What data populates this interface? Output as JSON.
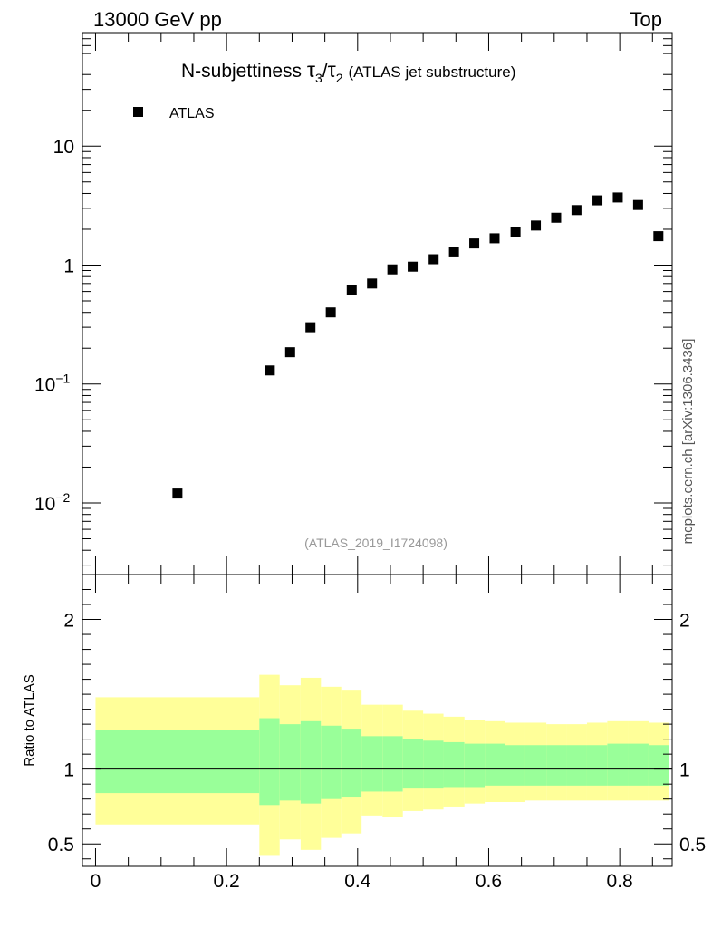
{
  "header": {
    "left": "13000 GeV pp",
    "right": "Top"
  },
  "side_label": "mcplots.cern.ch [arXiv:1306.3436]",
  "chart_data": {
    "type": "scatter",
    "title_main": "N-subjettiness ",
    "title_tau": "τ",
    "title_sub3": "3",
    "title_slash": "/",
    "title_sub2": "2",
    "title_paren": "(ATLAS jet substructure)",
    "legend": "ATLAS",
    "watermark": "(ATLAS_2019_I1724098)",
    "xlim": [
      -0.02,
      0.88
    ],
    "ylim_log": [
      0.0025,
      90
    ],
    "ylim_ratio": [
      0.35,
      2.3
    ],
    "ylabel_ratio": "Ratio to ATLAS",
    "yticks_main": [
      {
        "v": 10,
        "label": "10",
        "exp": ""
      },
      {
        "v": 1,
        "label": "1",
        "exp": ""
      },
      {
        "v": 0.1,
        "label": "10",
        "exp": "−1"
      },
      {
        "v": 0.01,
        "label": "10",
        "exp": "−2"
      }
    ],
    "yticks_ratio": [
      {
        "v": 2,
        "label": "2"
      },
      {
        "v": 1,
        "label": "1"
      },
      {
        "v": 0.5,
        "label": "0.5"
      }
    ],
    "xticks": [
      {
        "v": 0,
        "label": "0"
      },
      {
        "v": 0.2,
        "label": "0.2"
      },
      {
        "v": 0.4,
        "label": "0.4"
      },
      {
        "v": 0.6,
        "label": "0.6"
      },
      {
        "v": 0.8,
        "label": "0.8"
      }
    ],
    "points": [
      {
        "x": 0.125,
        "y": 0.012
      },
      {
        "x": 0.266,
        "y": 0.13
      },
      {
        "x": 0.297,
        "y": 0.185
      },
      {
        "x": 0.328,
        "y": 0.3
      },
      {
        "x": 0.359,
        "y": 0.4
      },
      {
        "x": 0.391,
        "y": 0.62
      },
      {
        "x": 0.422,
        "y": 0.7
      },
      {
        "x": 0.453,
        "y": 0.92
      },
      {
        "x": 0.484,
        "y": 0.97
      },
      {
        "x": 0.516,
        "y": 1.12
      },
      {
        "x": 0.547,
        "y": 1.28
      },
      {
        "x": 0.578,
        "y": 1.52
      },
      {
        "x": 0.609,
        "y": 1.68
      },
      {
        "x": 0.641,
        "y": 1.9
      },
      {
        "x": 0.672,
        "y": 2.15
      },
      {
        "x": 0.703,
        "y": 2.5
      },
      {
        "x": 0.734,
        "y": 2.9
      },
      {
        "x": 0.766,
        "y": 3.5
      },
      {
        "x": 0.797,
        "y": 3.7
      },
      {
        "x": 0.828,
        "y": 3.2
      },
      {
        "x": 0.859,
        "y": 1.75
      }
    ],
    "bands": [
      {
        "x0": 0.0,
        "x1": 0.25,
        "y_lo": 0.63,
        "y_hi": 1.48,
        "g_lo": 0.84,
        "g_hi": 1.26
      },
      {
        "x0": 0.25,
        "x1": 0.281,
        "y_lo": 0.42,
        "y_hi": 1.63,
        "g_lo": 0.76,
        "g_hi": 1.34
      },
      {
        "x0": 0.281,
        "x1": 0.313,
        "y_lo": 0.53,
        "y_hi": 1.56,
        "g_lo": 0.79,
        "g_hi": 1.3
      },
      {
        "x0": 0.313,
        "x1": 0.344,
        "y_lo": 0.46,
        "y_hi": 1.61,
        "g_lo": 0.77,
        "g_hi": 1.32
      },
      {
        "x0": 0.344,
        "x1": 0.375,
        "y_lo": 0.54,
        "y_hi": 1.55,
        "g_lo": 0.8,
        "g_hi": 1.29
      },
      {
        "x0": 0.375,
        "x1": 0.406,
        "y_lo": 0.57,
        "y_hi": 1.53,
        "g_lo": 0.81,
        "g_hi": 1.27
      },
      {
        "x0": 0.406,
        "x1": 0.438,
        "y_lo": 0.69,
        "y_hi": 1.43,
        "g_lo": 0.85,
        "g_hi": 1.22
      },
      {
        "x0": 0.438,
        "x1": 0.469,
        "y_lo": 0.68,
        "y_hi": 1.43,
        "g_lo": 0.85,
        "g_hi": 1.22
      },
      {
        "x0": 0.469,
        "x1": 0.5,
        "y_lo": 0.72,
        "y_hi": 1.39,
        "g_lo": 0.87,
        "g_hi": 1.2
      },
      {
        "x0": 0.5,
        "x1": 0.531,
        "y_lo": 0.73,
        "y_hi": 1.37,
        "g_lo": 0.87,
        "g_hi": 1.19
      },
      {
        "x0": 0.531,
        "x1": 0.563,
        "y_lo": 0.75,
        "y_hi": 1.35,
        "g_lo": 0.88,
        "g_hi": 1.18
      },
      {
        "x0": 0.563,
        "x1": 0.594,
        "y_lo": 0.77,
        "y_hi": 1.33,
        "g_lo": 0.88,
        "g_hi": 1.17
      },
      {
        "x0": 0.594,
        "x1": 0.625,
        "y_lo": 0.78,
        "y_hi": 1.32,
        "g_lo": 0.89,
        "g_hi": 1.17
      },
      {
        "x0": 0.625,
        "x1": 0.656,
        "y_lo": 0.78,
        "y_hi": 1.31,
        "g_lo": 0.89,
        "g_hi": 1.16
      },
      {
        "x0": 0.656,
        "x1": 0.688,
        "y_lo": 0.79,
        "y_hi": 1.31,
        "g_lo": 0.89,
        "g_hi": 1.16
      },
      {
        "x0": 0.688,
        "x1": 0.719,
        "y_lo": 0.79,
        "y_hi": 1.3,
        "g_lo": 0.89,
        "g_hi": 1.16
      },
      {
        "x0": 0.719,
        "x1": 0.75,
        "y_lo": 0.79,
        "y_hi": 1.3,
        "g_lo": 0.89,
        "g_hi": 1.16
      },
      {
        "x0": 0.75,
        "x1": 0.781,
        "y_lo": 0.79,
        "y_hi": 1.31,
        "g_lo": 0.89,
        "g_hi": 1.16
      },
      {
        "x0": 0.781,
        "x1": 0.813,
        "y_lo": 0.79,
        "y_hi": 1.32,
        "g_lo": 0.89,
        "g_hi": 1.17
      },
      {
        "x0": 0.813,
        "x1": 0.844,
        "y_lo": 0.79,
        "y_hi": 1.32,
        "g_lo": 0.89,
        "g_hi": 1.17
      },
      {
        "x0": 0.844,
        "x1": 0.875,
        "y_lo": 0.79,
        "y_hi": 1.31,
        "g_lo": 0.89,
        "g_hi": 1.16
      }
    ],
    "colors": {
      "yellow": "#ffff99",
      "green": "#99ff99",
      "marker": "#000000"
    }
  }
}
